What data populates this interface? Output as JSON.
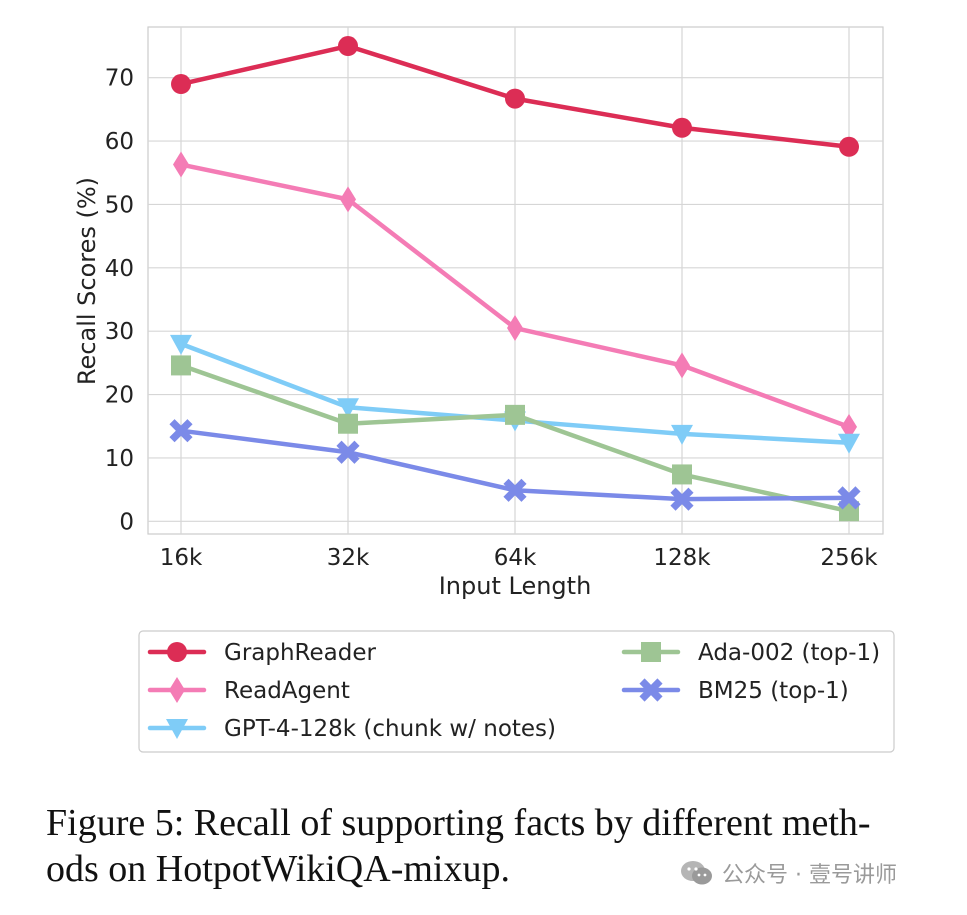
{
  "chart_data": {
    "type": "line",
    "categories": [
      "16k",
      "32k",
      "64k",
      "128k",
      "256k"
    ],
    "xlabel": "Input Length",
    "ylabel": "Recall Scores (%)",
    "ylim": [
      -2,
      78
    ],
    "yticks": [
      0,
      10,
      20,
      30,
      40,
      50,
      60,
      70
    ],
    "grid": true,
    "legend_position": "below",
    "series": [
      {
        "name": "GraphReader",
        "color": "#dc2d55",
        "marker": "circle",
        "values": [
          69.0,
          75.0,
          66.7,
          62.1,
          59.1
        ]
      },
      {
        "name": "ReadAgent",
        "color": "#f47cb5",
        "marker": "thin_diamond",
        "values": [
          56.3,
          50.8,
          30.5,
          24.6,
          14.9
        ]
      },
      {
        "name": "GPT-4-128k (chunk w/ notes)",
        "color": "#7fccf7",
        "marker": "triangle_down",
        "values": [
          28.0,
          18.0,
          15.9,
          13.8,
          12.4
        ]
      },
      {
        "name": "Ada-002 (top-1)",
        "color": "#9ec594",
        "marker": "square",
        "values": [
          24.6,
          15.4,
          16.8,
          7.4,
          1.6
        ]
      },
      {
        "name": "BM25 (top-1)",
        "color": "#7b8ae8",
        "marker": "x",
        "values": [
          14.3,
          10.9,
          4.9,
          3.5,
          3.7
        ]
      }
    ]
  },
  "caption": {
    "line1": "Figure 5: Recall of supporting facts by different meth-",
    "line2": "ods on HotpotWikiQA-mixup."
  },
  "watermark": {
    "text": "公众号 · 壹号讲师",
    "icon": "wechat-icon"
  }
}
